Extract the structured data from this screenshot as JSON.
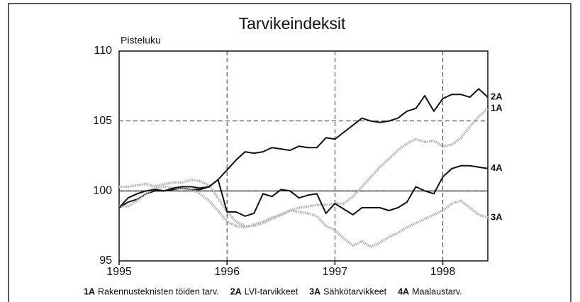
{
  "chart_data": {
    "type": "line",
    "title": "Tarvikeindeksit",
    "y_label": "Pisteluku",
    "x": [
      1995,
      1995.083,
      1995.167,
      1995.25,
      1995.333,
      1995.417,
      1995.5,
      1995.583,
      1995.667,
      1995.75,
      1995.833,
      1995.917,
      1996,
      1996.083,
      1996.167,
      1996.25,
      1996.333,
      1996.417,
      1996.5,
      1996.583,
      1996.667,
      1996.75,
      1996.833,
      1996.917,
      1997,
      1997.083,
      1997.167,
      1997.25,
      1997.333,
      1997.417,
      1997.5,
      1997.583,
      1997.667,
      1997.75,
      1997.833,
      1997.917,
      1998,
      1998.083,
      1998.167,
      1998.25,
      1998.333,
      1998.417
    ],
    "series": [
      {
        "label": "1A",
        "name": "Rakennusteknisten töiden tarv.",
        "color": "#b4b4b4",
        "style": "dotted",
        "values": [
          100.3,
          100.3,
          100.4,
          100.5,
          100.3,
          100.5,
          100.6,
          100.6,
          100.8,
          100.7,
          100.4,
          99.5,
          98.5,
          97.8,
          97.5,
          97.5,
          97.7,
          98,
          98.3,
          98.6,
          98.8,
          98.9,
          99,
          99,
          99.1,
          99.1,
          99.6,
          100.3,
          101,
          101.7,
          102.3,
          102.9,
          103.4,
          103.7,
          103.5,
          103.6,
          103.2,
          103.3,
          103.8,
          104.6,
          105.3,
          105.9
        ]
      },
      {
        "label": "2A",
        "name": "LVI-tarvikkeet",
        "color": "#111111",
        "style": "solid",
        "values": [
          98.8,
          99.2,
          99.4,
          99.8,
          100,
          100,
          100.1,
          100.2,
          100.1,
          100.1,
          100.3,
          100.8,
          101.5,
          102.2,
          102.8,
          102.7,
          102.8,
          103.1,
          103,
          102.9,
          103.2,
          103.1,
          103.1,
          103.8,
          103.7,
          104.2,
          104.7,
          105.2,
          105,
          104.9,
          105,
          105.2,
          105.7,
          105.9,
          106.8,
          105.7,
          106.6,
          106.9,
          106.9,
          106.7,
          107.3,
          106.7
        ]
      },
      {
        "label": "3A",
        "name": "Sähkötarvikkeet",
        "color": "#b4b4b4",
        "style": "dotted",
        "values": [
          98.9,
          98.9,
          99.3,
          99.8,
          100.2,
          100.3,
          100.2,
          100.2,
          100.1,
          99.8,
          99.3,
          98.6,
          97.8,
          97.5,
          97.4,
          97.6,
          97.8,
          98.1,
          98.3,
          98.6,
          98.5,
          98.4,
          98.2,
          97.5,
          97.2,
          96.6,
          96.1,
          96.4,
          96,
          96.3,
          96.7,
          97,
          97.4,
          97.7,
          98,
          98.3,
          98.6,
          99.1,
          99.3,
          98.8,
          98.3,
          98.1
        ]
      },
      {
        "label": "4A",
        "name": "Maalaustarv.",
        "color": "#111111",
        "style": "solid",
        "values": [
          98.8,
          99.5,
          99.8,
          100,
          100.1,
          100,
          100.2,
          100.3,
          100.3,
          100.2,
          100.3,
          100.8,
          98.5,
          98.5,
          98.2,
          98.4,
          99.8,
          99.6,
          100.1,
          100,
          99.5,
          99.7,
          99.8,
          98.4,
          99.1,
          98.7,
          98.3,
          98.8,
          98.8,
          98.8,
          98.6,
          98.8,
          99.2,
          100.3,
          100,
          99.8,
          101,
          101.6,
          101.8,
          101.8,
          101.7,
          101.6
        ]
      }
    ],
    "xlim": [
      1995,
      1998.417
    ],
    "xticks": [
      1995,
      1996,
      1997,
      1998
    ],
    "ylim": [
      95,
      110
    ],
    "yticks": [
      95,
      100,
      105,
      110
    ],
    "baseline": 100,
    "grid": true
  }
}
